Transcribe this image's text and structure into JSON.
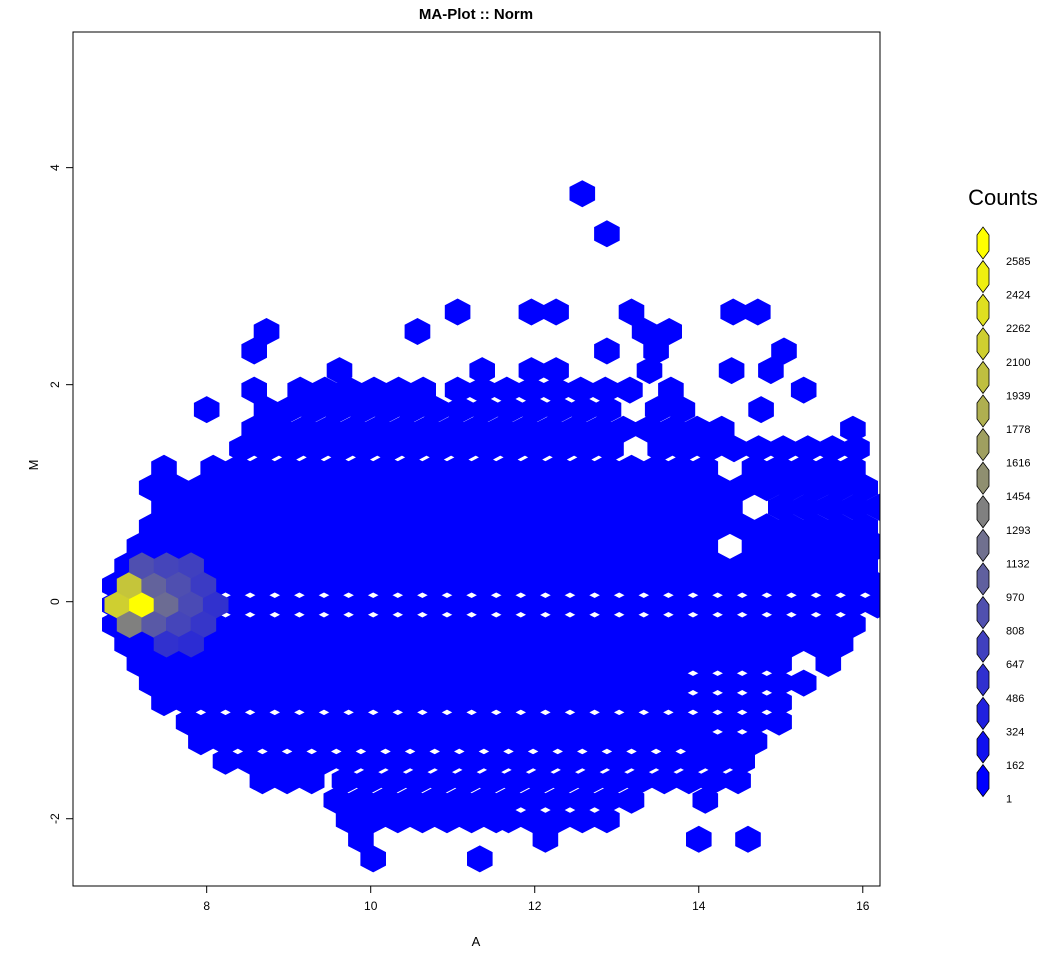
{
  "chart_data": {
    "type": "hexbin",
    "title": "MA-Plot :: Norm",
    "x_label": "A",
    "y_label": "M",
    "xlim": [
      6.37,
      16.21
    ],
    "ylim": [
      -2.62,
      5.25
    ],
    "xticks": [
      8,
      10,
      12,
      14,
      16
    ],
    "yticks": [
      -2,
      0,
      2,
      4
    ],
    "hex_step": 0.3,
    "rows": [
      {
        "M": 3.76,
        "spans": [
          [
            12.58,
            12.58
          ]
        ]
      },
      {
        "M": 3.39,
        "spans": [
          [
            12.88,
            12.88
          ]
        ]
      },
      {
        "M": 2.67,
        "spans": [
          [
            11.06,
            11.06
          ],
          [
            11.96,
            12.26
          ],
          [
            13.18,
            13.18
          ],
          [
            14.42,
            14.72
          ]
        ]
      },
      {
        "M": 2.49,
        "spans": [
          [
            8.73,
            8.73
          ],
          [
            10.57,
            10.57
          ],
          [
            13.34,
            13.64
          ]
        ]
      },
      {
        "M": 2.31,
        "spans": [
          [
            8.58,
            8.58
          ],
          [
            12.88,
            12.88
          ],
          [
            13.48,
            13.48
          ],
          [
            15.04,
            15.04
          ]
        ]
      },
      {
        "M": 2.13,
        "spans": [
          [
            9.62,
            9.62
          ],
          [
            11.36,
            11.36
          ],
          [
            11.96,
            11.96
          ],
          [
            12.26,
            12.26
          ],
          [
            13.4,
            13.4
          ],
          [
            14.4,
            14.4
          ],
          [
            14.88,
            14.88
          ]
        ]
      },
      {
        "M": 1.95,
        "spans": [
          [
            8.58,
            8.58
          ],
          [
            9.14,
            10.04
          ],
          [
            10.34,
            10.64
          ],
          [
            11.06,
            13.16
          ],
          [
            13.66,
            13.66
          ],
          [
            15.28,
            15.28
          ]
        ]
      },
      {
        "M": 1.77,
        "spans": [
          [
            8.0,
            8.0
          ],
          [
            8.73,
            8.73
          ],
          [
            9.0,
            12.9
          ],
          [
            13.5,
            13.8
          ],
          [
            14.76,
            14.76
          ]
        ]
      },
      {
        "M": 1.59,
        "spans": [
          [
            8.58,
            13.38
          ],
          [
            13.68,
            14.28
          ],
          [
            15.88,
            15.88
          ]
        ]
      },
      {
        "M": 1.41,
        "spans": [
          [
            8.43,
            12.93
          ],
          [
            13.53,
            16.0
          ]
        ]
      },
      {
        "M": 1.23,
        "spans": [
          [
            7.48,
            7.48
          ],
          [
            8.08,
            14.08
          ],
          [
            14.68,
            15.58
          ],
          [
            15.88,
            15.88
          ]
        ]
      },
      {
        "M": 1.05,
        "spans": [
          [
            7.33,
            15.13
          ],
          [
            15.43,
            15.43
          ],
          [
            15.73,
            16.03
          ]
        ]
      },
      {
        "M": 0.87,
        "spans": [
          [
            7.48,
            14.38
          ],
          [
            15.0,
            16.2
          ]
        ]
      },
      {
        "M": 0.69,
        "spans": [
          [
            7.33,
            15.73
          ],
          [
            16.03,
            16.03
          ]
        ]
      },
      {
        "M": 0.51,
        "spans": [
          [
            7.18,
            14.08
          ],
          [
            14.68,
            16.18
          ]
        ]
      },
      {
        "M": 0.33,
        "spans": [
          [
            7.03,
            16.03
          ]
        ]
      },
      {
        "M": 0.15,
        "spans": [
          [
            6.88,
            16.18
          ]
        ]
      },
      {
        "M": -0.03,
        "spans": [
          [
            6.88,
            16.18
          ]
        ]
      },
      {
        "M": -0.21,
        "spans": [
          [
            6.88,
            15.88
          ]
        ]
      },
      {
        "M": -0.39,
        "spans": [
          [
            7.03,
            15.73
          ]
        ]
      },
      {
        "M": -0.57,
        "spans": [
          [
            7.18,
            14.98
          ],
          [
            15.58,
            15.58
          ]
        ]
      },
      {
        "M": -0.75,
        "spans": [
          [
            7.33,
            13.48
          ],
          [
            13.78,
            15.28
          ]
        ]
      },
      {
        "M": -0.93,
        "spans": [
          [
            7.48,
            14.98
          ]
        ]
      },
      {
        "M": -1.11,
        "spans": [
          [
            7.78,
            14.83
          ]
        ]
      },
      {
        "M": -1.29,
        "spans": [
          [
            7.93,
            13.78
          ],
          [
            14.08,
            14.68
          ]
        ]
      },
      {
        "M": -1.47,
        "spans": [
          [
            8.23,
            10.33
          ],
          [
            10.63,
            14.38
          ]
        ]
      },
      {
        "M": -1.65,
        "spans": [
          [
            8.68,
            9.38
          ],
          [
            9.68,
            14.38
          ]
        ]
      },
      {
        "M": -1.83,
        "spans": [
          [
            9.58,
            13.18
          ],
          [
            14.08,
            14.08
          ]
        ]
      },
      {
        "M": -2.01,
        "spans": [
          [
            9.73,
            11.38
          ],
          [
            11.68,
            12.88
          ]
        ]
      },
      {
        "M": -2.19,
        "spans": [
          [
            9.88,
            9.88
          ],
          [
            12.13,
            12.13
          ],
          [
            14.0,
            14.0
          ],
          [
            14.6,
            14.6
          ]
        ]
      },
      {
        "M": -2.37,
        "spans": [
          [
            10.03,
            10.03
          ],
          [
            11.33,
            11.33
          ]
        ]
      }
    ],
    "cells": [
      {
        "A": 6.91,
        "M": -0.03,
        "count": 2100
      },
      {
        "A": 7.21,
        "M": -0.03,
        "count": 2585
      },
      {
        "A": 7.06,
        "M": 0.15,
        "count": 2000
      },
      {
        "A": 7.06,
        "M": -0.21,
        "count": 1300
      },
      {
        "A": 7.36,
        "M": 0.15,
        "count": 1000
      },
      {
        "A": 7.51,
        "M": -0.03,
        "count": 1100
      },
      {
        "A": 7.36,
        "M": -0.21,
        "count": 900
      },
      {
        "A": 7.21,
        "M": 0.33,
        "count": 800
      },
      {
        "A": 7.51,
        "M": 0.33,
        "count": 700
      },
      {
        "A": 7.81,
        "M": 0.33,
        "count": 650
      },
      {
        "A": 7.66,
        "M": 0.15,
        "count": 800
      },
      {
        "A": 7.96,
        "M": 0.15,
        "count": 600
      },
      {
        "A": 7.81,
        "M": -0.03,
        "count": 750
      },
      {
        "A": 8.11,
        "M": -0.03,
        "count": 500
      },
      {
        "A": 7.66,
        "M": -0.21,
        "count": 700
      },
      {
        "A": 7.96,
        "M": -0.21,
        "count": 550
      },
      {
        "A": 7.51,
        "M": -0.39,
        "count": 500
      },
      {
        "A": 7.81,
        "M": -0.39,
        "count": 450
      }
    ],
    "legend": {
      "title": "Counts",
      "breaks": [
        2585,
        2424,
        2262,
        2100,
        1939,
        1778,
        1616,
        1454,
        1293,
        1132,
        970,
        808,
        647,
        486,
        324,
        162,
        1
      ]
    }
  }
}
